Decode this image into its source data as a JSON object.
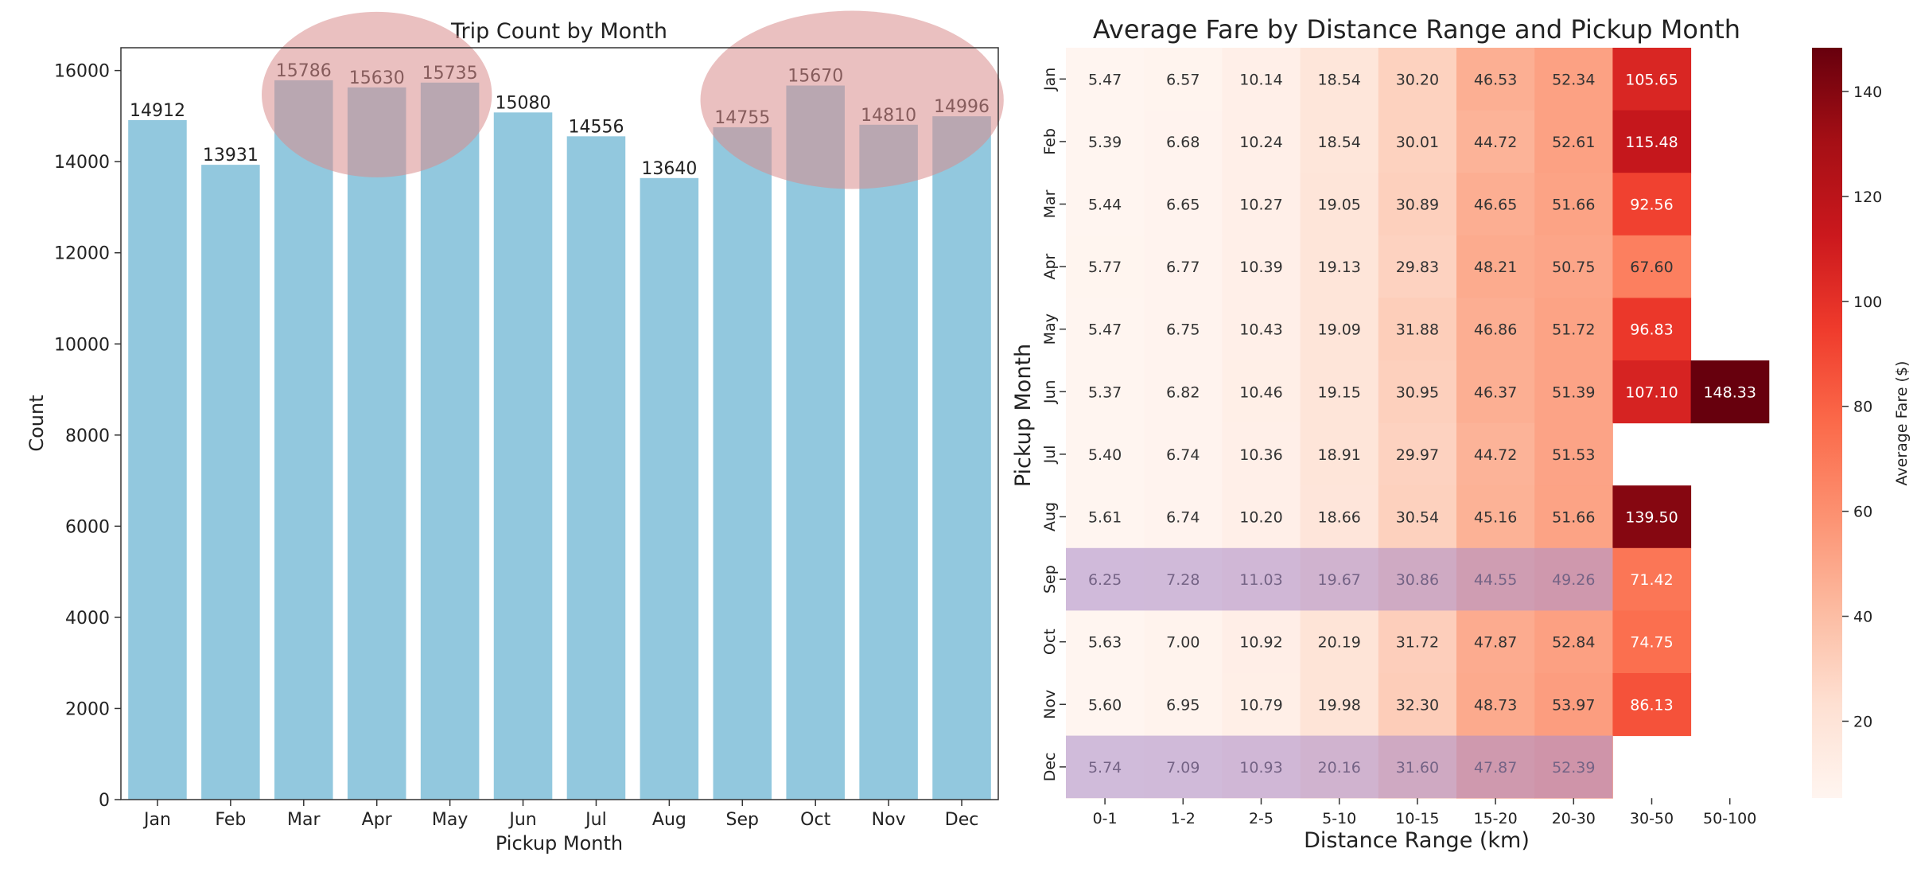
{
  "chart_data": [
    {
      "type": "bar",
      "title": "Trip Count by Month",
      "xlabel": "Pickup Month",
      "ylabel": "Count",
      "categories": [
        "Jan",
        "Feb",
        "Mar",
        "Apr",
        "May",
        "Jun",
        "Jul",
        "Aug",
        "Sep",
        "Oct",
        "Nov",
        "Dec"
      ],
      "values": [
        14912,
        13931,
        15786,
        15630,
        15735,
        15080,
        14556,
        13640,
        14755,
        15670,
        14810,
        14996
      ],
      "value_labels": [
        "14912",
        "13931",
        "15786",
        "15630",
        "15735",
        "15080",
        "14556",
        "13640",
        "14755",
        "15670",
        "14810",
        "14996"
      ],
      "yticks": [
        "0",
        "2000",
        "4000",
        "6000",
        "8000",
        "10000",
        "12000",
        "14000",
        "16000"
      ],
      "ylim": [
        0,
        16500
      ],
      "grid": false,
      "bar_color": "#92c8de",
      "highlight_color": "#d98c8c",
      "highlight_groups": [
        [
          "Mar",
          "Apr",
          "May"
        ],
        [
          "Sep",
          "Oct",
          "Nov",
          "Dec"
        ]
      ]
    },
    {
      "type": "heatmap",
      "title": "Average Fare by Distance Range and Pickup Month",
      "xlabel": "Distance Range (km)",
      "ylabel": "Pickup Month",
      "x": [
        "0-1",
        "1-2",
        "2-5",
        "5-10",
        "10-15",
        "15-20",
        "20-30",
        "30-50",
        "50-100"
      ],
      "y": [
        "Jan",
        "Feb",
        "Mar",
        "Apr",
        "May",
        "Jun",
        "Jul",
        "Aug",
        "Sep",
        "Oct",
        "Nov",
        "Dec"
      ],
      "values": [
        [
          "5.47",
          "6.57",
          "10.14",
          "18.54",
          "30.20",
          "46.53",
          "52.34",
          "105.65",
          ""
        ],
        [
          "5.39",
          "6.68",
          "10.24",
          "18.54",
          "30.01",
          "44.72",
          "52.61",
          "115.48",
          ""
        ],
        [
          "5.44",
          "6.65",
          "10.27",
          "19.05",
          "30.89",
          "46.65",
          "51.66",
          "92.56",
          ""
        ],
        [
          "5.77",
          "6.77",
          "10.39",
          "19.13",
          "29.83",
          "48.21",
          "50.75",
          "67.60",
          ""
        ],
        [
          "5.47",
          "6.75",
          "10.43",
          "19.09",
          "31.88",
          "46.86",
          "51.72",
          "96.83",
          ""
        ],
        [
          "5.37",
          "6.82",
          "10.46",
          "19.15",
          "30.95",
          "46.37",
          "51.39",
          "107.10",
          "148.33"
        ],
        [
          "5.40",
          "6.74",
          "10.36",
          "18.91",
          "29.97",
          "44.72",
          "51.53",
          "",
          ""
        ],
        [
          "5.61",
          "6.74",
          "10.20",
          "18.66",
          "30.54",
          "45.16",
          "51.66",
          "139.50",
          ""
        ],
        [
          "6.25",
          "7.28",
          "11.03",
          "19.67",
          "30.86",
          "44.55",
          "49.26",
          "71.42",
          ""
        ],
        [
          "5.63",
          "7.00",
          "10.92",
          "20.19",
          "31.72",
          "47.87",
          "52.84",
          "74.75",
          ""
        ],
        [
          "5.60",
          "6.95",
          "10.79",
          "19.98",
          "32.30",
          "48.73",
          "53.97",
          "86.13",
          ""
        ],
        [
          "5.74",
          "7.09",
          "10.93",
          "20.16",
          "31.60",
          "47.87",
          "52.39",
          "",
          ""
        ]
      ],
      "colorbar": {
        "label": "Average Fare ($)",
        "ticks": [
          "20",
          "40",
          "60",
          "80",
          "100",
          "120",
          "140"
        ],
        "range": [
          5.37,
          148.33
        ],
        "colors": [
          "#fff5f0",
          "#fee0d2",
          "#fcbba1",
          "#fc9272",
          "#fb6a4a",
          "#ef3b2c",
          "#cb181d",
          "#a50f15",
          "#67000d"
        ]
      },
      "highlight_color": "#a98bc9",
      "highlight_rows": [
        "Sep",
        "Dec"
      ]
    }
  ]
}
